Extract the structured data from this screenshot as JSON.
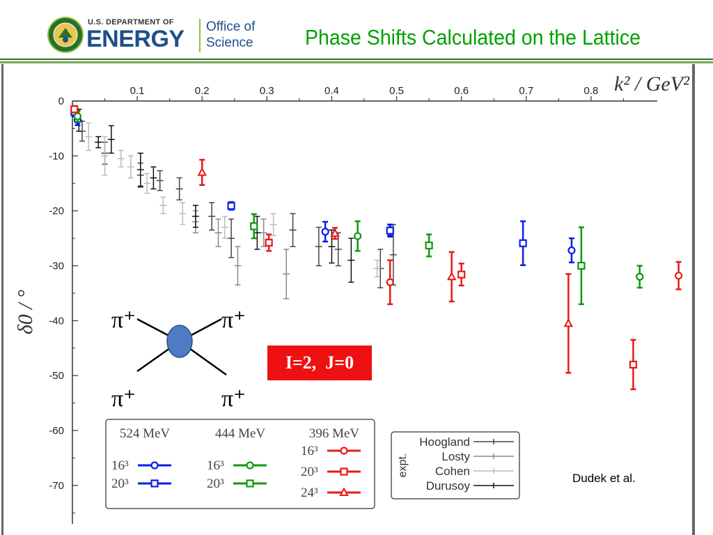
{
  "header": {
    "org_small": "U.S. DEPARTMENT OF",
    "org_big": "ENERGY",
    "office_line1": "Office of",
    "office_line2": "Science",
    "title": "Phase Shifts Calculated on the Lattice"
  },
  "annotations": {
    "channel": "I=2,  J=0",
    "credit": "Dudek et al.",
    "pion_label": "π⁺"
  },
  "colors": {
    "blue": "#0a1ee8",
    "green": "#0d9a0d",
    "red": "#e81818",
    "title_green": "#00a000",
    "doe_blue": "#1f4f8b"
  },
  "chart_data": {
    "type": "scatter",
    "xlabel": "k² / GeV²",
    "ylabel": "δ0 / °",
    "xlim": [
      0,
      0.9
    ],
    "ylim": [
      -77,
      0
    ],
    "x_ticks": [
      0.1,
      0.2,
      0.3,
      0.4,
      0.5,
      0.6,
      0.7,
      0.8
    ],
    "y_ticks": [
      0,
      -10,
      -20,
      -30,
      -40,
      -50,
      -60,
      -70
    ],
    "x_axis_position": "top",
    "legend_lattice": {
      "columns": [
        {
          "header": "524 MeV",
          "entries": [
            {
              "vol": "16³",
              "marker": "circle"
            },
            {
              "vol": "20³",
              "marker": "square"
            }
          ]
        },
        {
          "header": "444 MeV",
          "entries": [
            {
              "vol": "16³",
              "marker": "circle"
            },
            {
              "vol": "20³",
              "marker": "square"
            }
          ]
        },
        {
          "header": "396 MeV",
          "entries": [
            {
              "vol": "16³",
              "marker": "circle"
            },
            {
              "vol": "20³",
              "marker": "square"
            },
            {
              "vol": "24³",
              "marker": "triangle"
            }
          ]
        }
      ]
    },
    "legend_expt": {
      "label": "expt.",
      "entries": [
        "Hoogland",
        "Losty",
        "Cohen",
        "Durusoy"
      ]
    },
    "series": [
      {
        "mass": "524 MeV",
        "vol": "16³",
        "color": "blue",
        "marker": "circle",
        "points": [
          [
            0.008,
            -3.5,
            0.9
          ],
          [
            0.39,
            -23.8,
            1.8
          ],
          [
            0.49,
            -23.5,
            1.0
          ],
          [
            0.77,
            -27.2,
            2.2
          ]
        ]
      },
      {
        "mass": "524 MeV",
        "vol": "20³",
        "color": "blue",
        "marker": "square",
        "points": [
          [
            0.003,
            -2.0,
            0.8
          ],
          [
            0.245,
            -19.1,
            0.7
          ],
          [
            0.49,
            -23.6,
            1.1
          ],
          [
            0.695,
            -25.9,
            4.0
          ]
        ]
      },
      {
        "mass": "444 MeV",
        "vol": "16³",
        "color": "green",
        "marker": "circle",
        "points": [
          [
            0.008,
            -2.8,
            1.0
          ],
          [
            0.44,
            -24.6,
            2.7
          ],
          [
            0.875,
            -32.0,
            2.0
          ]
        ]
      },
      {
        "mass": "444 MeV",
        "vol": "20³",
        "color": "green",
        "marker": "square",
        "points": [
          [
            0.28,
            -22.8,
            2.2
          ],
          [
            0.55,
            -26.3,
            2.0
          ],
          [
            0.785,
            -30.0,
            7.0
          ]
        ]
      },
      {
        "mass": "396 MeV",
        "vol": "16³",
        "color": "red",
        "marker": "circle",
        "points": [
          [
            0.49,
            -33.0,
            4.0
          ],
          [
            0.935,
            -31.8,
            2.5
          ]
        ]
      },
      {
        "mass": "396 MeV",
        "vol": "20³",
        "color": "red",
        "marker": "square",
        "points": [
          [
            0.003,
            -1.5,
            0.6
          ],
          [
            0.303,
            -25.8,
            1.5
          ],
          [
            0.6,
            -31.6,
            2.0
          ],
          [
            0.865,
            -48.0,
            4.5
          ]
        ]
      },
      {
        "mass": "396 MeV",
        "vol": "24³",
        "color": "red",
        "marker": "triangle",
        "points": [
          [
            0.2,
            -13.0,
            2.3
          ],
          [
            0.405,
            -24.1,
            1.0
          ],
          [
            0.585,
            -32.0,
            4.5
          ],
          [
            0.765,
            -40.5,
            9.0
          ]
        ]
      }
    ],
    "experiment": [
      {
        "name": "Hoogland",
        "shade": "#444444",
        "points": [
          [
            0.015,
            -5.5,
            1.8
          ],
          [
            0.05,
            -9.5,
            2.0
          ],
          [
            0.105,
            -13.5,
            2.2
          ],
          [
            0.135,
            -14.5,
            1.8
          ],
          [
            0.165,
            -16.0,
            2.0
          ],
          [
            0.215,
            -21.0,
            2.5
          ],
          [
            0.245,
            -25.0,
            3.5
          ],
          [
            0.34,
            -23.5,
            3.0
          ],
          [
            0.38,
            -26.5,
            3.5
          ],
          [
            0.41,
            -27.0,
            3.0
          ],
          [
            0.475,
            -30.5,
            3.5
          ],
          [
            0.495,
            -28.0,
            5.5
          ]
        ]
      },
      {
        "name": "Losty",
        "shade": "#888888",
        "points": [
          [
            0.19,
            -22.0,
            2.0
          ],
          [
            0.225,
            -24.0,
            2.5
          ],
          [
            0.255,
            -30.0,
            3.5
          ],
          [
            0.295,
            -24.0,
            2.5
          ],
          [
            0.33,
            -31.5,
            4.5
          ]
        ]
      },
      {
        "name": "Cohen",
        "shade": "#bbbbbb",
        "points": [
          [
            0.025,
            -6.5,
            2.5
          ],
          [
            0.05,
            -10.0,
            3.5
          ],
          [
            0.075,
            -10.5,
            1.5
          ],
          [
            0.09,
            -12.0,
            2.0
          ],
          [
            0.115,
            -15.0,
            1.8
          ],
          [
            0.14,
            -19.0,
            1.5
          ],
          [
            0.17,
            -20.5,
            2.0
          ],
          [
            0.235,
            -23.0,
            2.0
          ],
          [
            0.31,
            -22.5,
            2.0
          ],
          [
            0.47,
            -30.5,
            1.5
          ]
        ]
      },
      {
        "name": "Durusoy",
        "shade": "#111111",
        "points": [
          [
            0.01,
            -3.5,
            2.0
          ],
          [
            0.04,
            -7.5,
            1.0
          ],
          [
            0.06,
            -7.0,
            2.5
          ],
          [
            0.105,
            -12.5,
            3.0
          ],
          [
            0.125,
            -14.0,
            2.0
          ],
          [
            0.19,
            -21.0,
            2.0
          ],
          [
            0.285,
            -24.0,
            3.0
          ],
          [
            0.4,
            -26.5,
            3.0
          ],
          [
            0.43,
            -29.0,
            4.0
          ]
        ]
      }
    ]
  }
}
